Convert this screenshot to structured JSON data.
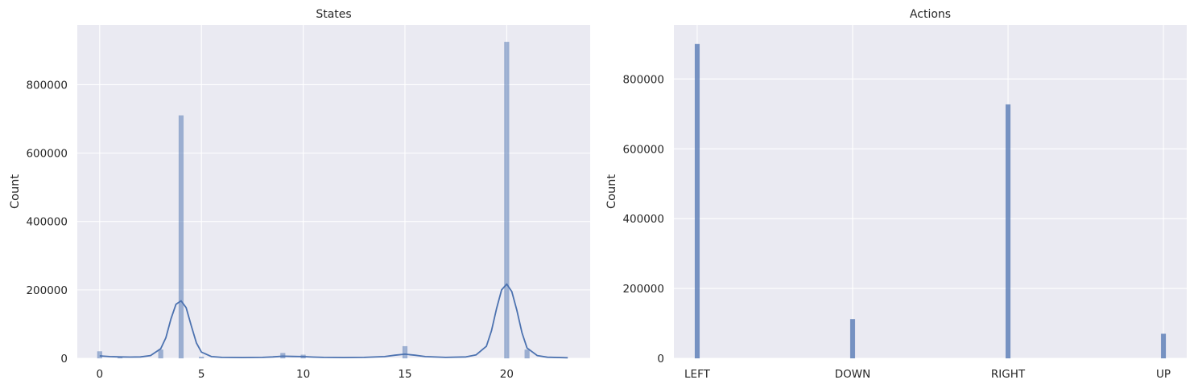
{
  "colors": {
    "background": "#eaeaf2",
    "grid": "#ffffff",
    "bar": "#4c72b0",
    "kde": "#4c72b0",
    "text": "#262626"
  },
  "chart_data": [
    {
      "type": "bar",
      "subtype": "histogram_with_kde",
      "title": "States",
      "xlabel": "",
      "ylabel": "Count",
      "xlim": [
        -1.1,
        24.1
      ],
      "ylim": [
        0,
        975000
      ],
      "xticks": [
        0,
        5,
        10,
        15,
        20
      ],
      "yticks": [
        0,
        200000,
        400000,
        600000,
        800000
      ],
      "grid": true,
      "bin_width": 0.23,
      "bars": [
        {
          "x": 0,
          "value": 20000
        },
        {
          "x": 1,
          "value": 3000
        },
        {
          "x": 3,
          "value": 25000
        },
        {
          "x": 4,
          "value": 710000
        },
        {
          "x": 5,
          "value": 4000
        },
        {
          "x": 9,
          "value": 15000
        },
        {
          "x": 10,
          "value": 10000
        },
        {
          "x": 15,
          "value": 35000
        },
        {
          "x": 20,
          "value": 925000
        },
        {
          "x": 21,
          "value": 25000
        }
      ],
      "kde": {
        "x": [
          0,
          0.5,
          1,
          1.5,
          2,
          2.5,
          3,
          3.25,
          3.5,
          3.75,
          4,
          4.25,
          4.5,
          4.75,
          5,
          5.5,
          6,
          7,
          8,
          8.5,
          9,
          9.5,
          10,
          10.5,
          11,
          12,
          13,
          14,
          14.5,
          15,
          15.5,
          16,
          17,
          18,
          18.5,
          19,
          19.25,
          19.5,
          19.75,
          20,
          20.25,
          20.5,
          20.75,
          21,
          21.5,
          22,
          23
        ],
        "y": [
          7000,
          5000,
          4000,
          3500,
          4000,
          8000,
          28000,
          60000,
          115000,
          158000,
          168000,
          148000,
          95000,
          45000,
          18000,
          5000,
          2500,
          2000,
          2500,
          4000,
          6000,
          5500,
          5000,
          3500,
          2500,
          2000,
          2500,
          5000,
          9000,
          12000,
          9000,
          5000,
          2500,
          4000,
          10000,
          35000,
          80000,
          145000,
          200000,
          217000,
          195000,
          140000,
          75000,
          30000,
          8000,
          3000,
          1500
        ]
      }
    },
    {
      "type": "bar",
      "subtype": "histogram",
      "title": "Actions",
      "xlabel": "",
      "ylabel": "Count",
      "xlim": [
        -0.15,
        3.15
      ],
      "ylim": [
        0,
        955000
      ],
      "categories": [
        "LEFT",
        "DOWN",
        "RIGHT",
        "UP"
      ],
      "values": [
        900000,
        112000,
        727000,
        70000
      ],
      "yticks": [
        0,
        200000,
        400000,
        600000,
        800000
      ],
      "grid": true,
      "bin_width": 0.03
    }
  ]
}
